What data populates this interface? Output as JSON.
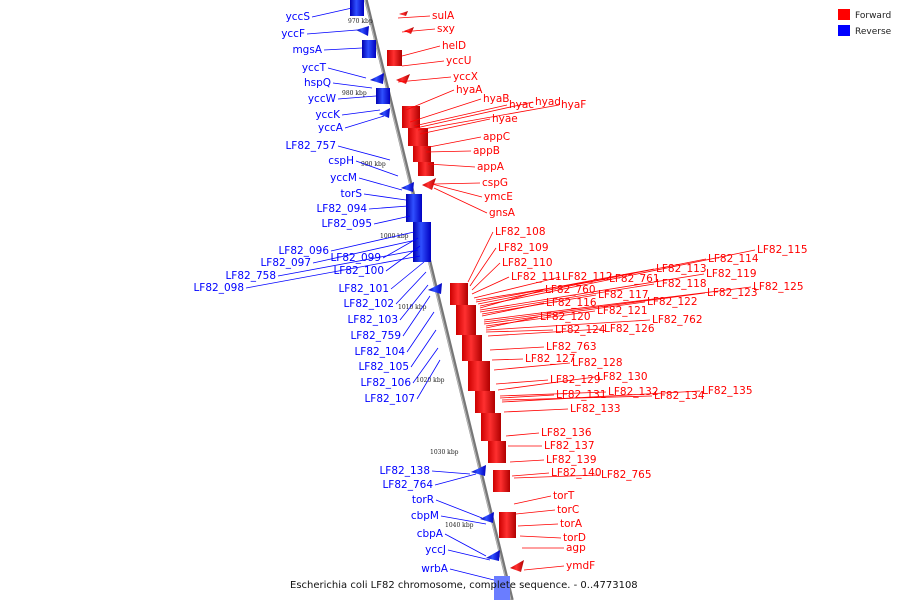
{
  "caption": "Escherichia coli LF82 chromosome, complete sequence. - 0..4773108",
  "legend": [
    {
      "label": "Forward",
      "color": "#ff0000"
    },
    {
      "label": "Reverse",
      "color": "#0000ff"
    }
  ],
  "colors": {
    "forward": "#ff0000",
    "reverse": "#0000ff",
    "backbone": "#808080",
    "leader": "#ff0000",
    "leader_rev": "#0000ff"
  },
  "ticks": [
    "970 kbp",
    "980 kbp",
    "990 kbp",
    "1000 kbp",
    "1010 kbp",
    "1020 kbp",
    "1030 kbp",
    "1040 kbp"
  ],
  "reverse_genes": [
    "yccS",
    "yccF",
    "mgsA",
    "yccT",
    "hspQ",
    "yccW",
    "yccK",
    "yccA",
    "LF82_757",
    "cspH",
    "yccM",
    "torS",
    "LF82_094",
    "LF82_095",
    "LF82_096",
    "LF82_099",
    "LF82_097",
    "LF82_100",
    "LF82_758",
    "LF82_098",
    "LF82_101",
    "LF82_102",
    "LF82_103",
    "LF82_759",
    "LF82_104",
    "LF82_105",
    "LF82_106",
    "LF82_107",
    "LF82_138",
    "LF82_764",
    "torR",
    "cbpM",
    "cbpA",
    "yccJ",
    "wrbA"
  ],
  "forward_genes": [
    "sulA",
    "sxy",
    "helD",
    "yccU",
    "yccX",
    "hyaA",
    "hyaB",
    "hyac",
    "hyad",
    "hyaF",
    "hyae",
    "appC",
    "appB",
    "appA",
    "cspG",
    "ymcE",
    "gnsA",
    "LF82_108",
    "LF82_109",
    "LF82_110",
    "LF82_111",
    "LF82_112",
    "LF82_761",
    "LF82_113",
    "LF82_114",
    "LF82_115",
    "LF82_760",
    "LF82_119",
    "LF82_118",
    "LF82_117",
    "LF82_116",
    "LF82_125",
    "LF82_123",
    "LF82_122",
    "LF82_121",
    "LF82_120",
    "LF82_762",
    "LF82_124",
    "LF82_126",
    "LF82_763",
    "LF82_127",
    "LF82_128",
    "LF82_129",
    "LF82_130",
    "LF82_132",
    "LF82_131",
    "LF82_134",
    "LF82_135",
    "LF82_133",
    "LF82_136",
    "LF82_137",
    "LF82_139",
    "LF82_140",
    "LF82_765",
    "torT",
    "torC",
    "torA",
    "torD",
    "agp",
    "ymdF"
  ]
}
